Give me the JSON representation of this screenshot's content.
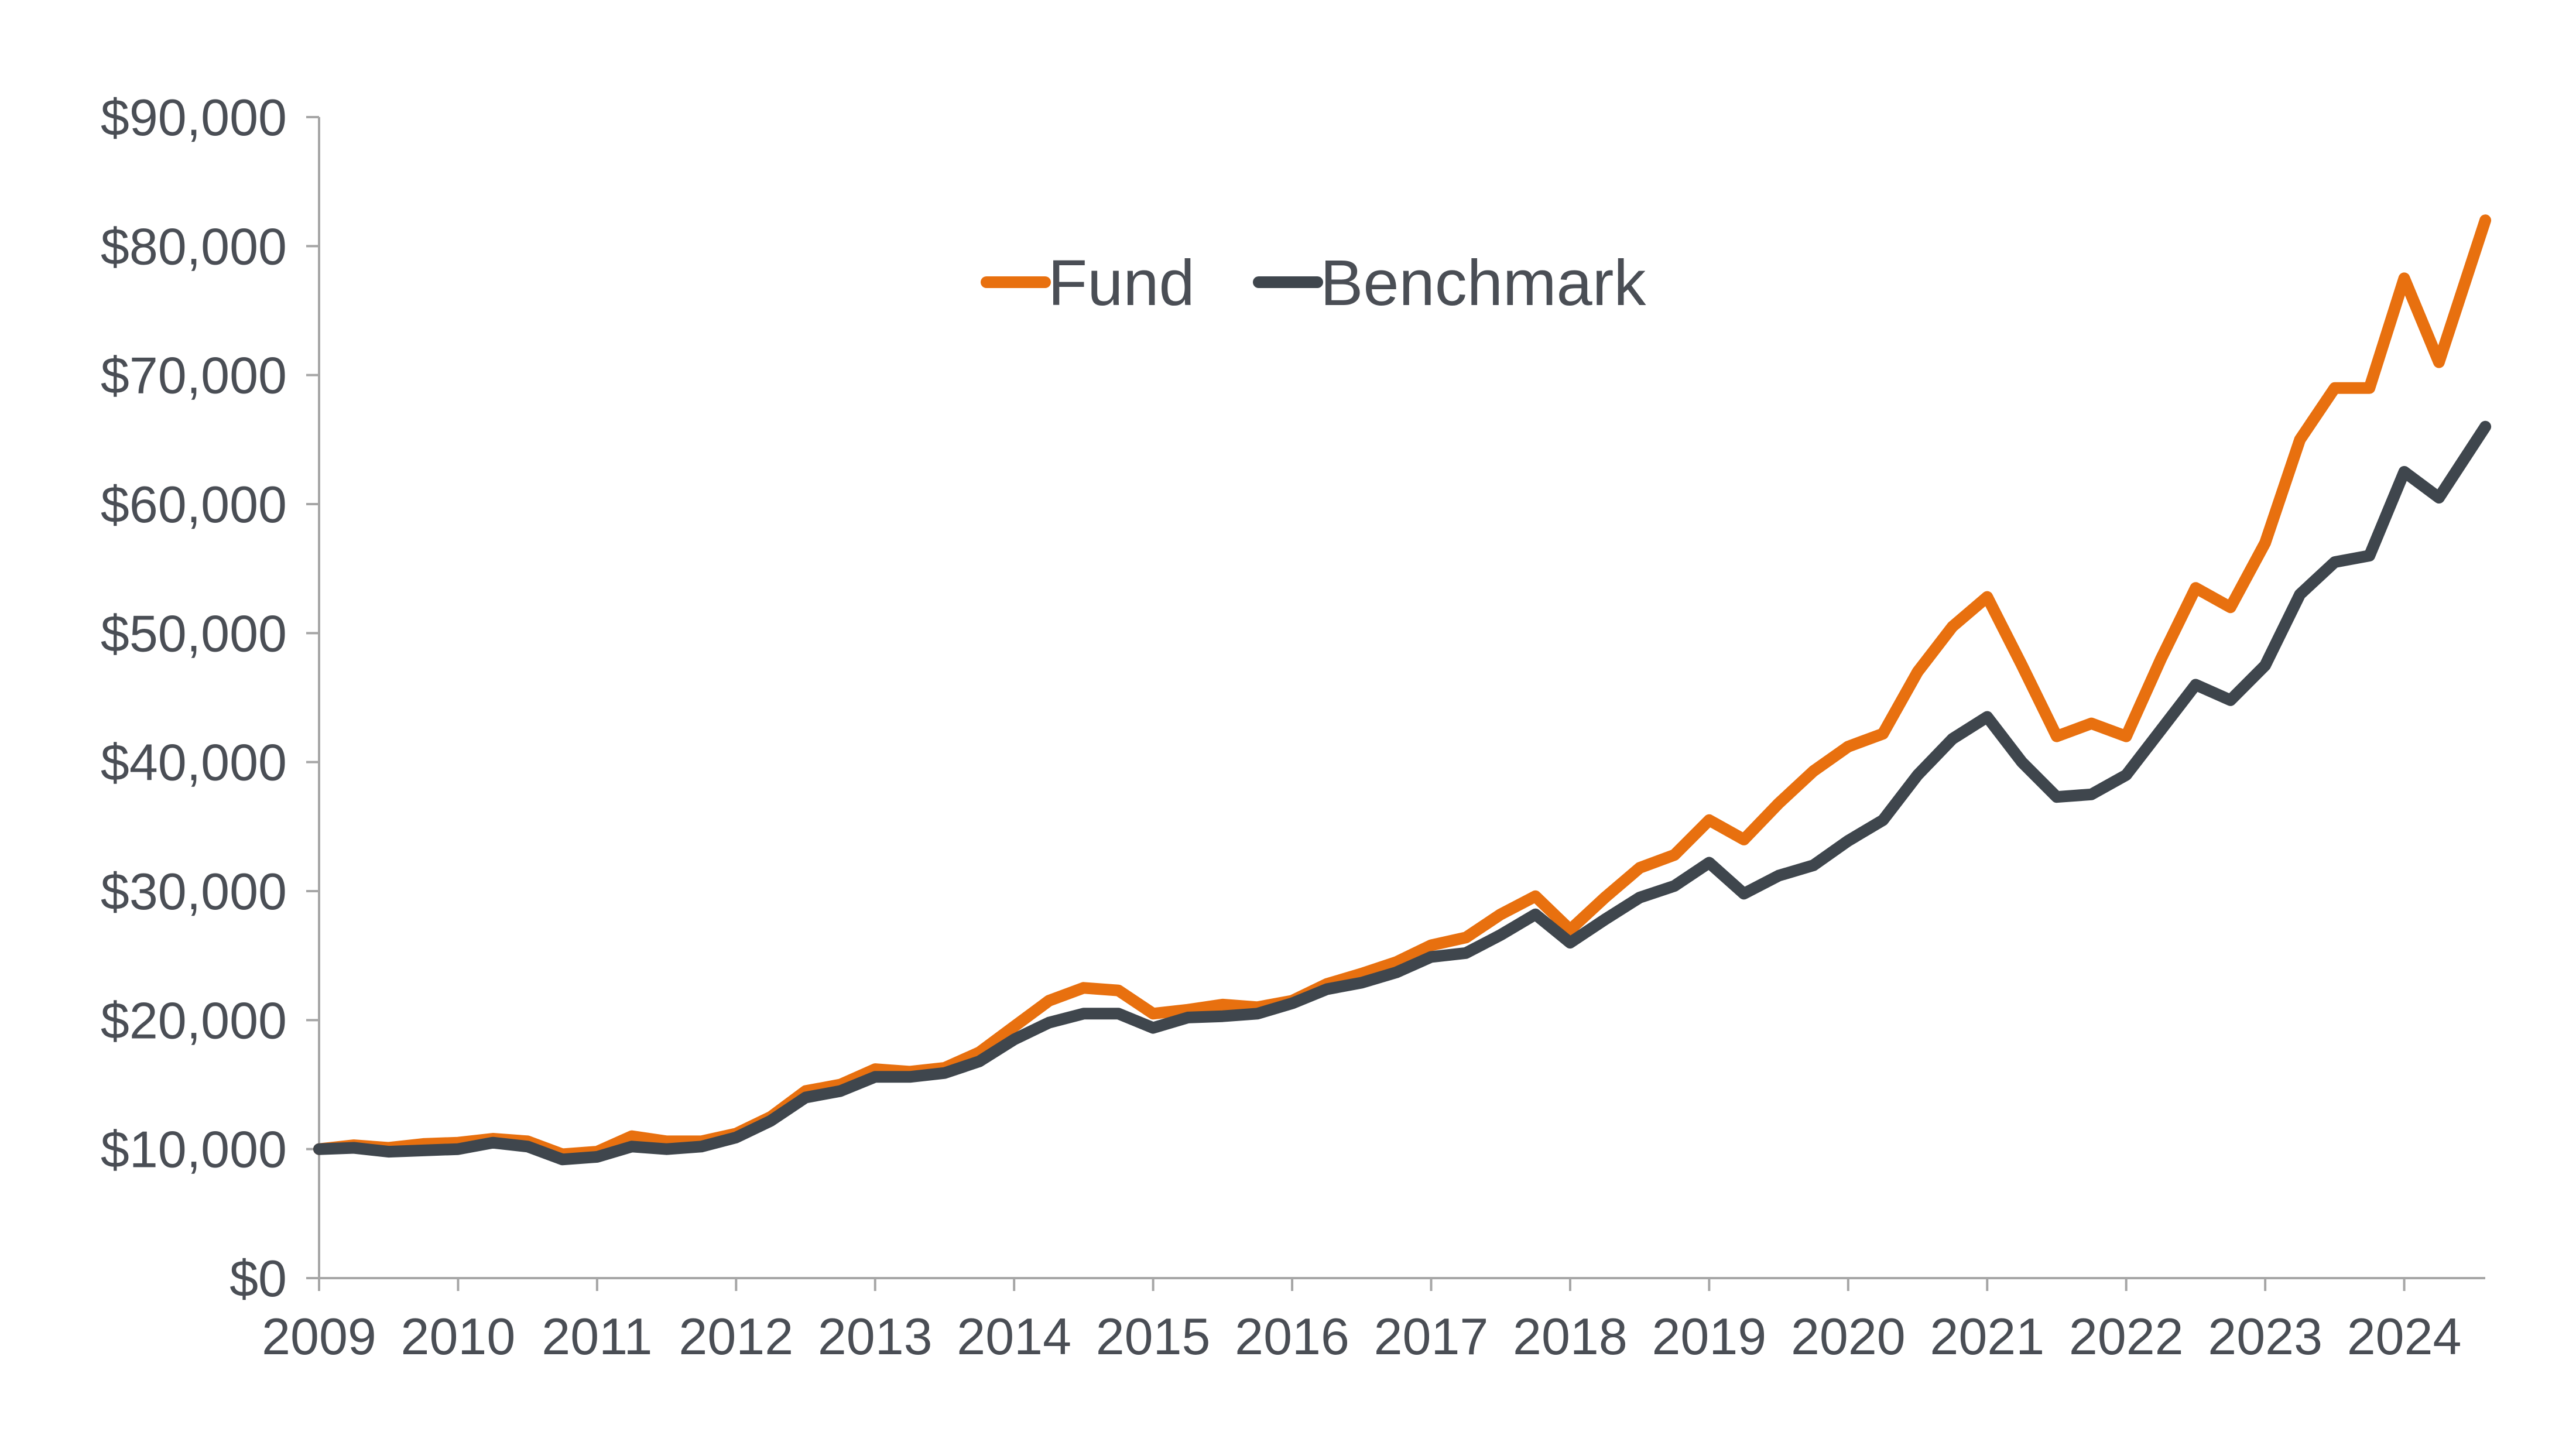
{
  "chart_data": {
    "type": "line",
    "title": "",
    "xlabel": "",
    "ylabel": "",
    "ylim": [
      0,
      90000
    ],
    "xlim": [
      "2009-01",
      "2024-08"
    ],
    "yticks": [
      0,
      10000,
      20000,
      30000,
      40000,
      50000,
      60000,
      70000,
      80000,
      90000
    ],
    "ytick_labels": [
      "$0",
      "$10,000",
      "$20,000",
      "$30,000",
      "$40,000",
      "$50,000",
      "$60,000",
      "$70,000",
      "$80,000",
      "$90,000"
    ],
    "xtick_labels": [
      "2009",
      "2010",
      "2011",
      "2012",
      "2013",
      "2014",
      "2015",
      "2016",
      "2017",
      "2018",
      "2019",
      "2020",
      "2021",
      "2022",
      "2023",
      "2024"
    ],
    "grid": false,
    "legend_position": "top-center",
    "colors": {
      "Fund": "#e8700f",
      "Benchmark": "#3f464d",
      "axis": "#a6a6a6"
    },
    "series": [
      {
        "name": "Fund",
        "color": "#e8700f",
        "points": [
          [
            "2009-01",
            10000
          ],
          [
            "2009-04",
            10300
          ],
          [
            "2009-07",
            10100
          ],
          [
            "2009-10",
            10400
          ],
          [
            "2010-01",
            10500
          ],
          [
            "2010-04",
            10800
          ],
          [
            "2010-07",
            10600
          ],
          [
            "2010-10",
            9600
          ],
          [
            "2011-01",
            9800
          ],
          [
            "2011-04",
            11000
          ],
          [
            "2011-07",
            10600
          ],
          [
            "2011-10",
            10600
          ],
          [
            "2012-01",
            11200
          ],
          [
            "2012-04",
            12500
          ],
          [
            "2012-07",
            14500
          ],
          [
            "2012-10",
            15000
          ],
          [
            "2013-01",
            16200
          ],
          [
            "2013-04",
            16000
          ],
          [
            "2013-07",
            16300
          ],
          [
            "2013-10",
            17500
          ],
          [
            "2014-01",
            19500
          ],
          [
            "2014-04",
            21500
          ],
          [
            "2014-07",
            22500
          ],
          [
            "2014-10",
            22300
          ],
          [
            "2015-01",
            20500
          ],
          [
            "2015-04",
            20800
          ],
          [
            "2015-07",
            21200
          ],
          [
            "2015-10",
            21000
          ],
          [
            "2016-01",
            21500
          ],
          [
            "2016-04",
            22800
          ],
          [
            "2016-07",
            23600
          ],
          [
            "2016-10",
            24500
          ],
          [
            "2017-01",
            25800
          ],
          [
            "2017-04",
            26400
          ],
          [
            "2017-07",
            28200
          ],
          [
            "2017-10",
            29600
          ],
          [
            "2018-01",
            27000
          ],
          [
            "2018-04",
            29500
          ],
          [
            "2018-07",
            31800
          ],
          [
            "2018-10",
            32800
          ],
          [
            "2019-01",
            35500
          ],
          [
            "2019-04",
            34000
          ],
          [
            "2019-07",
            36800
          ],
          [
            "2019-10",
            39300
          ],
          [
            "2020-01",
            41200
          ],
          [
            "2020-04",
            42200
          ],
          [
            "2020-07",
            47000
          ],
          [
            "2020-10",
            50500
          ],
          [
            "2021-01",
            52800
          ],
          [
            "2021-04",
            47500
          ],
          [
            "2021-07",
            42000
          ],
          [
            "2021-10",
            43000
          ],
          [
            "2022-01",
            42000
          ],
          [
            "2022-04",
            48000
          ],
          [
            "2022-07",
            53500
          ],
          [
            "2022-10",
            52000
          ],
          [
            "2023-01",
            57000
          ],
          [
            "2023-04",
            65000
          ],
          [
            "2023-07",
            69000
          ],
          [
            "2023-10",
            69000
          ],
          [
            "2024-01",
            77500
          ],
          [
            "2024-04",
            71000
          ],
          [
            "2024-08",
            82000
          ]
        ]
      },
      {
        "name": "Benchmark",
        "color": "#3f464d",
        "points": [
          [
            "2009-01",
            10000
          ],
          [
            "2009-04",
            10100
          ],
          [
            "2009-07",
            9800
          ],
          [
            "2009-10",
            9900
          ],
          [
            "2010-01",
            10000
          ],
          [
            "2010-04",
            10500
          ],
          [
            "2010-07",
            10200
          ],
          [
            "2010-10",
            9200
          ],
          [
            "2011-01",
            9400
          ],
          [
            "2011-04",
            10200
          ],
          [
            "2011-07",
            10000
          ],
          [
            "2011-10",
            10200
          ],
          [
            "2012-01",
            10900
          ],
          [
            "2012-04",
            12200
          ],
          [
            "2012-07",
            14000
          ],
          [
            "2012-10",
            14500
          ],
          [
            "2013-01",
            15600
          ],
          [
            "2013-04",
            15600
          ],
          [
            "2013-07",
            15900
          ],
          [
            "2013-10",
            16800
          ],
          [
            "2014-01",
            18500
          ],
          [
            "2014-04",
            19800
          ],
          [
            "2014-07",
            20500
          ],
          [
            "2014-10",
            20500
          ],
          [
            "2015-01",
            19400
          ],
          [
            "2015-04",
            20200
          ],
          [
            "2015-07",
            20300
          ],
          [
            "2015-10",
            20500
          ],
          [
            "2016-01",
            21300
          ],
          [
            "2016-04",
            22400
          ],
          [
            "2016-07",
            22900
          ],
          [
            "2016-10",
            23700
          ],
          [
            "2017-01",
            24900
          ],
          [
            "2017-04",
            25200
          ],
          [
            "2017-07",
            26600
          ],
          [
            "2017-10",
            28200
          ],
          [
            "2018-01",
            26000
          ],
          [
            "2018-04",
            27800
          ],
          [
            "2018-07",
            29500
          ],
          [
            "2018-10",
            30400
          ],
          [
            "2019-01",
            32200
          ],
          [
            "2019-04",
            29800
          ],
          [
            "2019-07",
            31200
          ],
          [
            "2019-10",
            32000
          ],
          [
            "2020-01",
            33900
          ],
          [
            "2020-04",
            35500
          ],
          [
            "2020-07",
            39000
          ],
          [
            "2020-10",
            41800
          ],
          [
            "2021-01",
            43500
          ],
          [
            "2021-04",
            40000
          ],
          [
            "2021-07",
            37300
          ],
          [
            "2021-10",
            37500
          ],
          [
            "2022-01",
            39000
          ],
          [
            "2022-04",
            42500
          ],
          [
            "2022-07",
            46000
          ],
          [
            "2022-10",
            44800
          ],
          [
            "2023-01",
            47500
          ],
          [
            "2023-04",
            53000
          ],
          [
            "2023-07",
            55500
          ],
          [
            "2023-10",
            56000
          ],
          [
            "2024-01",
            62500
          ],
          [
            "2024-04",
            60500
          ],
          [
            "2024-08",
            66000
          ]
        ]
      }
    ]
  }
}
